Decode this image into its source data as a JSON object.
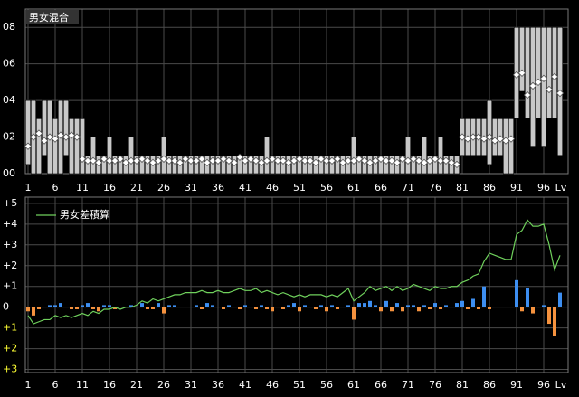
{
  "chart_data": [
    {
      "type": "range",
      "title": "男女混合",
      "xlabel": "Lv",
      "x": [
        1,
        2,
        3,
        4,
        5,
        6,
        7,
        8,
        9,
        10,
        11,
        12,
        13,
        14,
        15,
        16,
        17,
        18,
        19,
        20,
        21,
        22,
        23,
        24,
        25,
        26,
        27,
        28,
        29,
        30,
        31,
        32,
        33,
        34,
        35,
        36,
        37,
        38,
        39,
        40,
        41,
        42,
        43,
        44,
        45,
        46,
        47,
        48,
        49,
        50,
        51,
        52,
        53,
        54,
        55,
        56,
        57,
        58,
        59,
        60,
        61,
        62,
        63,
        64,
        65,
        66,
        67,
        68,
        69,
        70,
        71,
        72,
        73,
        74,
        75,
        76,
        77,
        78,
        79,
        80,
        81,
        82,
        83,
        84,
        85,
        86,
        87,
        88,
        89,
        90,
        91,
        92,
        93,
        94,
        95,
        96,
        97,
        98,
        99
      ],
      "low": [
        0.5,
        0,
        0,
        1,
        0,
        0,
        0,
        1,
        0,
        0,
        0,
        0,
        0,
        0,
        0,
        0,
        0,
        0,
        0,
        0,
        0,
        0,
        0,
        0,
        0,
        0,
        0,
        0,
        0,
        0,
        0,
        0,
        0,
        0,
        0,
        0,
        0,
        0,
        0,
        0,
        0,
        0,
        0,
        0,
        0,
        0,
        0,
        0,
        0,
        0,
        0,
        0,
        0,
        0,
        0,
        0,
        0,
        0,
        0,
        0,
        0,
        0,
        0,
        0,
        0,
        0,
        0,
        0,
        0,
        0,
        0,
        0,
        0,
        0,
        0,
        0,
        0,
        0,
        0,
        0,
        1,
        1,
        1,
        1,
        1,
        0.5,
        1,
        1,
        0,
        0,
        3,
        4.5,
        3,
        1.5,
        3,
        1.5,
        3,
        3,
        1
      ],
      "high": [
        4,
        4,
        3,
        4,
        4,
        3,
        4,
        4,
        3,
        3,
        3,
        1,
        2,
        1,
        1,
        2,
        1,
        1,
        1,
        2,
        1,
        1,
        1,
        1,
        1,
        2,
        1,
        1,
        1,
        1,
        1,
        1,
        1,
        1,
        1,
        1,
        1,
        1,
        1,
        1,
        1,
        1,
        1,
        1,
        2,
        1,
        1,
        1,
        1,
        1,
        1,
        1,
        1,
        1,
        1,
        1,
        1,
        1,
        1,
        1,
        2,
        1,
        1,
        1,
        1,
        1,
        1,
        1,
        1,
        1,
        2,
        1,
        1,
        2,
        1,
        1,
        2,
        1,
        1,
        1,
        3,
        3,
        3,
        3,
        3,
        4,
        3,
        3,
        3,
        3,
        8,
        8,
        8,
        8,
        8,
        8,
        8,
        8,
        8
      ],
      "values": [
        1.5,
        2,
        2.2,
        1.8,
        2,
        1.9,
        2.1,
        2,
        2.1,
        2,
        0.8,
        0.7,
        0.7,
        0.6,
        0.8,
        0.7,
        0.7,
        0.8,
        0.6,
        0.7,
        0.7,
        0.8,
        0.7,
        0.6,
        0.7,
        0.8,
        0.7,
        0.7,
        0.6,
        0.8,
        0.7,
        0.7,
        0.8,
        0.6,
        0.7,
        0.7,
        0.8,
        0.7,
        0.6,
        0.9,
        0.7,
        0.8,
        0.7,
        0.6,
        0.7,
        0.8,
        0.7,
        0.7,
        0.6,
        0.7,
        0.8,
        0.7,
        0.7,
        0.6,
        0.8,
        0.7,
        0.7,
        0.8,
        0.6,
        0.7,
        0.7,
        0.8,
        0.7,
        0.6,
        0.7,
        0.8,
        0.7,
        0.7,
        0.6,
        0.8,
        0.7,
        0.8,
        0.7,
        0.6,
        0.7,
        0.8,
        0.7,
        0.7,
        0.6,
        0.5,
        2,
        1.9,
        2,
        2,
        1.9,
        2,
        1.8,
        1.9,
        1.8,
        1.9,
        5.4,
        5.5,
        4.3,
        4.8,
        5,
        5.2,
        4.6,
        5.3,
        4.4
      ],
      "box_color": "#c8c8c8",
      "marker_color": "#ffffff",
      "xlim": [
        0.5,
        100.5
      ],
      "xticks": [
        1,
        6,
        11,
        16,
        21,
        26,
        31,
        36,
        41,
        46,
        51,
        56,
        61,
        66,
        71,
        76,
        81,
        86,
        91,
        96
      ],
      "ylim": [
        0,
        9
      ],
      "yticks": [
        {
          "value": 0,
          "label": "00"
        },
        {
          "value": 2,
          "label": "02"
        },
        {
          "value": 4,
          "label": "04"
        },
        {
          "value": 6,
          "label": "06"
        },
        {
          "value": 8,
          "label": "08"
        }
      ],
      "grid": true
    },
    {
      "type": "bar_line",
      "xlabel": "Lv",
      "x": [
        1,
        2,
        3,
        4,
        5,
        6,
        7,
        8,
        9,
        10,
        11,
        12,
        13,
        14,
        15,
        16,
        17,
        18,
        19,
        20,
        21,
        22,
        23,
        24,
        25,
        26,
        27,
        28,
        29,
        30,
        31,
        32,
        33,
        34,
        35,
        36,
        37,
        38,
        39,
        40,
        41,
        42,
        43,
        44,
        45,
        46,
        47,
        48,
        49,
        50,
        51,
        52,
        53,
        54,
        55,
        56,
        57,
        58,
        59,
        60,
        61,
        62,
        63,
        64,
        65,
        66,
        67,
        68,
        69,
        70,
        71,
        72,
        73,
        74,
        75,
        76,
        77,
        78,
        79,
        80,
        81,
        82,
        83,
        84,
        85,
        86,
        87,
        88,
        89,
        90,
        91,
        92,
        93,
        94,
        95,
        96,
        97,
        98,
        99
      ],
      "values": [
        -0.2,
        -0.4,
        -0.1,
        0,
        0.1,
        0.1,
        0.2,
        0,
        -0.1,
        -0.1,
        0.1,
        0.2,
        -0.1,
        -0.2,
        0.1,
        0.1,
        -0.1,
        0,
        0,
        0.1,
        0,
        0.2,
        -0.1,
        -0.1,
        0.2,
        -0.3,
        0.1,
        0.1,
        0,
        0,
        0,
        0.1,
        -0.1,
        0.2,
        0.1,
        0,
        -0.1,
        0.1,
        0,
        -0.1,
        0.1,
        0,
        -0.1,
        0.1,
        -0.1,
        -0.2,
        0,
        -0.1,
        0.1,
        0.2,
        -0.2,
        0.1,
        0,
        -0.1,
        0.1,
        -0.2,
        0.1,
        -0.1,
        0,
        0.1,
        -0.6,
        0.2,
        0.2,
        0.3,
        0.1,
        -0.2,
        0.3,
        -0.2,
        0.2,
        -0.2,
        0.1,
        0.1,
        -0.2,
        0.1,
        -0.1,
        0.2,
        -0.1,
        0.1,
        0,
        0.2,
        0.3,
        -0.1,
        0.4,
        -0.1,
        1.0,
        -0.1,
        0,
        0,
        0,
        0,
        1.3,
        -0.2,
        0.9,
        -0.3,
        0,
        0.1,
        -0.8,
        -1.4,
        0.7
      ],
      "positive_color": "#3d8ef0",
      "negative_color": "#f5923e",
      "series": [
        {
          "name": "男女差積算",
          "color": "#6fd05c",
          "values": [
            -0.4,
            -0.8,
            -0.7,
            -0.6,
            -0.6,
            -0.4,
            -0.5,
            -0.4,
            -0.5,
            -0.4,
            -0.3,
            -0.4,
            -0.2,
            -0.3,
            -0.1,
            -0.1,
            0,
            -0.1,
            0,
            0,
            0.1,
            0.3,
            0.2,
            0.4,
            0.3,
            0.4,
            0.5,
            0.6,
            0.6,
            0.7,
            0.7,
            0.7,
            0.8,
            0.7,
            0.7,
            0.8,
            0.7,
            0.7,
            0.8,
            0.9,
            0.8,
            0.8,
            0.9,
            0.7,
            0.8,
            0.7,
            0.6,
            0.7,
            0.6,
            0.5,
            0.6,
            0.5,
            0.6,
            0.6,
            0.6,
            0.5,
            0.6,
            0.5,
            0.7,
            0.9,
            0.3,
            0.5,
            0.7,
            1.0,
            0.8,
            0.9,
            1.0,
            0.8,
            1.0,
            0.8,
            0.9,
            1.1,
            1.0,
            0.9,
            0.8,
            1.0,
            0.9,
            0.9,
            1.0,
            1.0,
            1.2,
            1.3,
            1.5,
            1.6,
            2.2,
            2.6,
            2.5,
            2.4,
            2.3,
            2.3,
            3.5,
            3.7,
            4.2,
            3.9,
            3.9,
            4.0,
            3.0,
            1.8,
            2.5
          ]
        }
      ],
      "xlim": [
        0.5,
        100.5
      ],
      "xticks": [
        1,
        6,
        11,
        16,
        21,
        26,
        31,
        36,
        41,
        46,
        51,
        56,
        61,
        66,
        71,
        76,
        81,
        86,
        91,
        96
      ],
      "ylim": [
        -3.15,
        5.3
      ],
      "yticks": [
        {
          "value": 5,
          "label": "+5"
        },
        {
          "value": 4,
          "label": "+4"
        },
        {
          "value": 3,
          "label": "+3"
        },
        {
          "value": 2,
          "label": "+2"
        },
        {
          "value": 1,
          "label": "+1"
        },
        0,
        {
          "value": -1,
          "label": "+1"
        },
        {
          "value": -2,
          "label": "+2"
        },
        {
          "value": -3,
          "label": "+3"
        }
      ],
      "tick_color": "#ffffff",
      "negative_tick_color": "#ffff33",
      "grid": true
    }
  ]
}
